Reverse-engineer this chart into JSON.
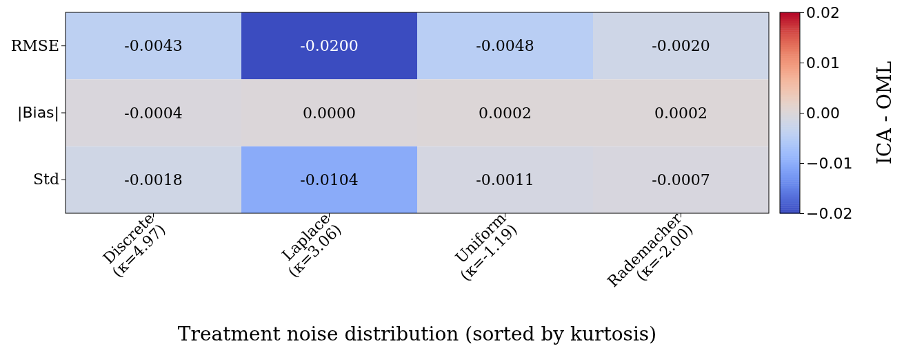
{
  "chart_data": {
    "type": "heatmap",
    "xlabel": "Treatment noise distribution (sorted by kurtosis)",
    "clabel": "ICA - OML",
    "categories": [
      "Discrete\n(κ=4.97)",
      "Laplace\n(κ=3.06)",
      "Uniform\n(κ=-1.19)",
      "Rademacher\n(κ=-2.00)"
    ],
    "y_categories": [
      "RMSE",
      "|Bias|",
      "Std"
    ],
    "cells": [
      [
        -0.0043,
        -0.02,
        -0.0048,
        -0.002
      ],
      [
        -0.0004,
        0.0,
        0.0002,
        0.0002
      ],
      [
        -0.0018,
        -0.0104,
        -0.0011,
        -0.0007
      ]
    ],
    "cell_labels": [
      [
        "-0.0043",
        "-0.0200",
        "-0.0048",
        "-0.0020"
      ],
      [
        "-0.0004",
        "0.0000",
        "0.0002",
        "0.0002"
      ],
      [
        "-0.0018",
        "-0.0104",
        "-0.0011",
        "-0.0007"
      ]
    ],
    "clim": [
      -0.02,
      0.02
    ],
    "cticks": [
      {
        "value": -0.02,
        "label": "−0.02"
      },
      {
        "value": -0.01,
        "label": "−0.01"
      },
      {
        "value": 0,
        "label": "0.00"
      },
      {
        "value": 0.01,
        "label": "0.01"
      },
      {
        "value": 0.02,
        "label": "0.02"
      }
    ]
  }
}
